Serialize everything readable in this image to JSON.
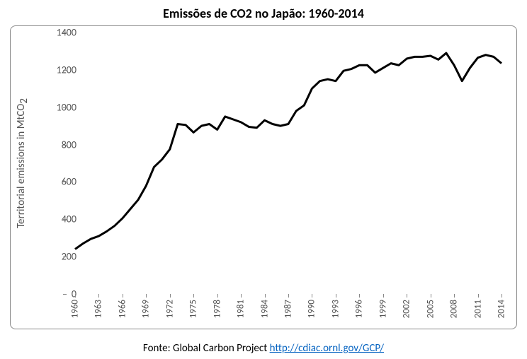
{
  "chart": {
    "type": "line",
    "title": "Emissões de CO2 no Japão: 1960-2014",
    "ylabel_prefix": "Territorial emissions in MtCO",
    "ylabel_sub": "2",
    "footer_text": "Fonte: Global Carbon Project ",
    "footer_link": "http://cdiac.ornl.gov/GCP/",
    "background_color": "#ffffff",
    "border_color": "#888888",
    "axis_text_color": "#555555",
    "line_color": "#000000",
    "line_width": 3,
    "title_fontsize": 18,
    "label_fontsize": 15,
    "tick_fontsize": 14,
    "ylim": [
      0,
      1400
    ],
    "ytick_step": 200,
    "xlim": [
      1960,
      2014
    ],
    "xtick_step": 3,
    "years": [
      1960,
      1961,
      1962,
      1963,
      1964,
      1965,
      1966,
      1967,
      1968,
      1969,
      1970,
      1971,
      1972,
      1973,
      1974,
      1975,
      1976,
      1977,
      1978,
      1979,
      1980,
      1981,
      1982,
      1983,
      1984,
      1985,
      1986,
      1987,
      1988,
      1989,
      1990,
      1991,
      1992,
      1993,
      1994,
      1995,
      1996,
      1997,
      1998,
      1999,
      2000,
      2001,
      2002,
      2003,
      2004,
      2005,
      2006,
      2007,
      2008,
      2009,
      2010,
      2011,
      2012,
      2013,
      2014
    ],
    "values": [
      240,
      270,
      295,
      310,
      335,
      365,
      405,
      455,
      505,
      580,
      680,
      720,
      775,
      910,
      905,
      865,
      900,
      910,
      880,
      950,
      935,
      920,
      895,
      890,
      930,
      910,
      900,
      910,
      980,
      1010,
      1100,
      1140,
      1150,
      1140,
      1195,
      1205,
      1225,
      1225,
      1185,
      1210,
      1235,
      1225,
      1260,
      1270,
      1270,
      1275,
      1255,
      1290,
      1225,
      1140,
      1210,
      1265,
      1280,
      1270,
      1235
    ]
  }
}
